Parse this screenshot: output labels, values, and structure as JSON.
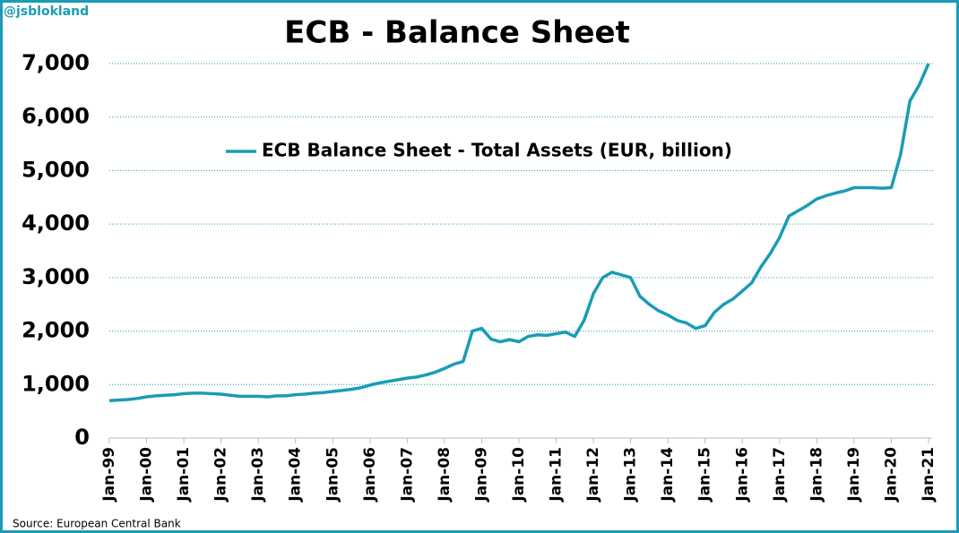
{
  "chart_data": {
    "type": "line",
    "title": "ECB - Balance Sheet",
    "credit": "@jsblokland",
    "source": "Source: European Central Bank",
    "categories": [
      "Jan-99",
      null,
      null,
      null,
      "Jan-00",
      null,
      null,
      null,
      "Jan-01",
      null,
      null,
      null,
      "Jan-02",
      null,
      null,
      null,
      "Jan-03",
      null,
      null,
      null,
      "Jan-04",
      null,
      null,
      null,
      "Jan-05",
      null,
      null,
      null,
      "Jan-06",
      null,
      null,
      null,
      "Jan-07",
      null,
      null,
      null,
      "Jan-08",
      null,
      null,
      null,
      "Jan-09",
      null,
      null,
      null,
      "Jan-10",
      null,
      null,
      null,
      "Jan-11",
      null,
      null,
      null,
      "Jan-12",
      null,
      null,
      null,
      "Jan-13",
      null,
      null,
      null,
      "Jan-14",
      null,
      null,
      null,
      "Jan-15",
      null,
      null,
      null,
      "Jan-16",
      null,
      null,
      null,
      "Jan-17",
      null,
      null,
      null,
      "Jan-18",
      null,
      null,
      null,
      "Jan-19",
      null,
      null,
      null,
      "Jan-20",
      null,
      null,
      null,
      "Jan-21"
    ],
    "series": [
      {
        "name": "ECB Balance Sheet - Total Assets (EUR, billion)",
        "color": "#1a9cb5",
        "values": [
          700,
          710,
          720,
          740,
          770,
          790,
          800,
          810,
          830,
          840,
          840,
          830,
          820,
          800,
          780,
          780,
          780,
          770,
          790,
          790,
          810,
          820,
          840,
          850,
          870,
          890,
          910,
          940,
          990,
          1030,
          1060,
          1090,
          1120,
          1140,
          1180,
          1230,
          1300,
          1380,
          1430,
          2000,
          2050,
          1850,
          1800,
          1840,
          1800,
          1900,
          1930,
          1920,
          1950,
          1980,
          1900,
          2200,
          2700,
          3000,
          3100,
          3050,
          3000,
          2650,
          2500,
          2380,
          2300,
          2200,
          2150,
          2050,
          2100,
          2350,
          2500,
          2600,
          2750,
          2900,
          3200,
          3450,
          3750,
          4150,
          4250,
          4350,
          4470,
          4530,
          4580,
          4620,
          4680,
          4680,
          4680,
          4670,
          4680,
          5300,
          6300,
          6600,
          7000
        ]
      }
    ],
    "ylim": [
      0,
      7000
    ],
    "yticks": [
      0,
      {
        "value": 1000,
        "label": "1,000"
      },
      {
        "value": 2000,
        "label": "2,000"
      },
      {
        "value": 3000,
        "label": "3,000"
      },
      {
        "value": 4000,
        "label": "4,000"
      },
      {
        "value": 5000,
        "label": "5,000"
      },
      {
        "value": 6000,
        "label": "6,000"
      },
      {
        "value": 7000,
        "label": "7,000"
      }
    ],
    "grid": true,
    "legend": "upper-center"
  }
}
